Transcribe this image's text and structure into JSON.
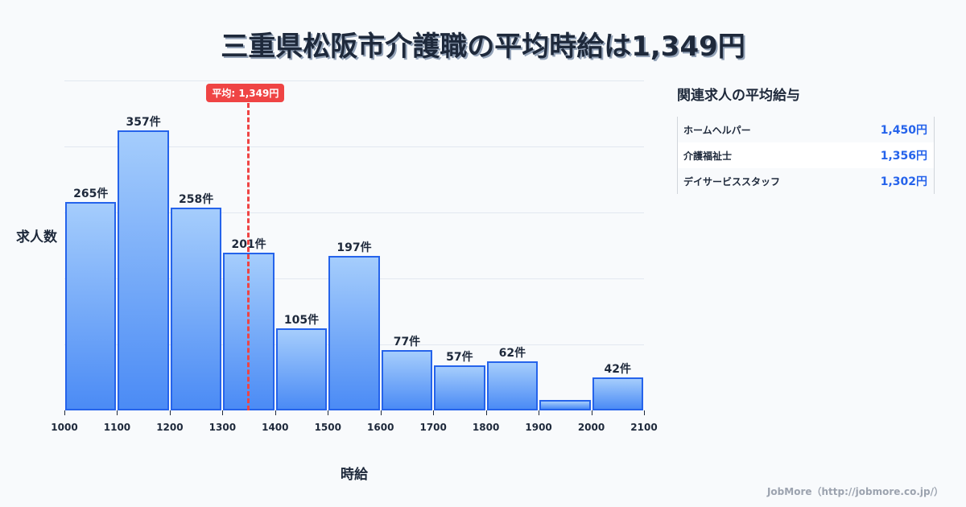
{
  "title": "三重県松阪市介護職の平均時給は1,349円",
  "chart_data": {
    "type": "bar",
    "title": "三重県松阪市介護職の平均時給は1,349円",
    "xlabel": "時給",
    "ylabel": "求人数",
    "categories": [
      "1000-1100",
      "1100-1200",
      "1200-1300",
      "1300-1400",
      "1400-1500",
      "1500-1600",
      "1600-1700",
      "1700-1800",
      "1800-1900",
      "1900-2000",
      "2000-2100"
    ],
    "bin_edges": [
      1000,
      1100,
      1200,
      1300,
      1400,
      1500,
      1600,
      1700,
      1800,
      1900,
      2000,
      2100
    ],
    "values": [
      265,
      357,
      258,
      201,
      105,
      197,
      77,
      57,
      62,
      13,
      42
    ],
    "labels": [
      "265件",
      "357件",
      "258件",
      "201件",
      "105件",
      "197件",
      "77件",
      "57件",
      "62件",
      "",
      "42件"
    ],
    "x_ticks": [
      "1000",
      "1100",
      "1200",
      "1300",
      "1400",
      "1500",
      "1600",
      "1700",
      "1800",
      "1900",
      "2000",
      "2100"
    ],
    "ylim": [
      0,
      420
    ],
    "grid": true,
    "average": {
      "value": 1349,
      "label": "平均: 1,349円",
      "color": "#ef4444"
    },
    "bar_color": "#60a5fa",
    "bar_border_color": "#2563eb"
  },
  "axis": {
    "ylabel": "求人数",
    "xlabel": "時給"
  },
  "related": {
    "title": "関連求人の平均給与",
    "items": [
      {
        "name": "ホームヘルパー",
        "value": "1,450円"
      },
      {
        "name": "介護福祉士",
        "value": "1,356円"
      },
      {
        "name": "デイサービススタッフ",
        "value": "1,302円"
      }
    ]
  },
  "footer": "JobMore（http://jobmore.co.jp/）"
}
